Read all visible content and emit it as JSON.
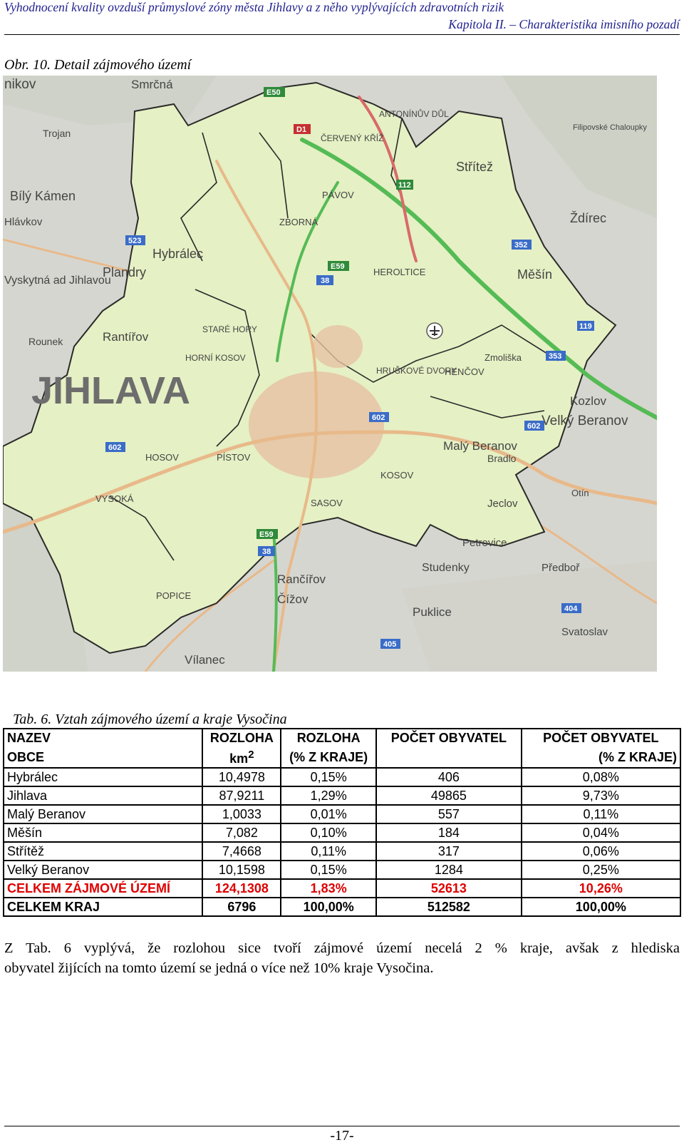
{
  "header": {
    "title": "Vyhodnocení kvality ovzduší průmyslové zóny města Jihlavy a z něho vyplývajících zdravotních rizik",
    "chapter": "Kapitola II. – Charakteristika imisního pozadí"
  },
  "figure": {
    "caption": "Obr. 10. Detail zájmového území",
    "map_labels": {
      "jihlava_big": "JIHLAVA",
      "hybralec": "Hybrálec",
      "bily_kamen": "Bílý Kámen",
      "plandry": "Plandry",
      "vyskytna": "Vyskytná ad Jihlavou",
      "rantirov": "Rantířov",
      "rounek": "Rounek",
      "stare_hory": "STARÉ HORY",
      "horni_kosov": "HORNÍ KOSOV",
      "hosov": "HOSOV",
      "pistov": "PÍSTOV",
      "vysoka": "VYSOKÁ",
      "popice": "POPICE",
      "sasov": "SASOV",
      "kosov": "KOSOV",
      "ranchirov": "Rančířov",
      "cizov": "Čížov",
      "vilanec": "Vílanec",
      "puklice": "Puklice",
      "studenky": "Studenky",
      "petrovice": "Petrovice",
      "predbor": "Předboř",
      "svatoslav": "Svatoslav",
      "jeclov": "Jeclov",
      "maly_beranov": "Malý Beranov",
      "bradlo": "Bradlo",
      "velky_beranov": "Velký Beranov",
      "kozlov": "Kozlov",
      "hencov": "HENČOV",
      "zmoliska": "Zmoliška",
      "hruskove_dvory": "HRUŠKOVÉ DVORY",
      "herltice": "HEROLTICE",
      "mesin": "Měšín",
      "zdirec": "Ždírec",
      "stritez": "Střítež",
      "antoninuv_dul": "ANTONÍNŮV DŮL",
      "cerveny_kriz": "ČERVENÝ KŘÍŽ",
      "pavov": "PÁVOV",
      "zborna": "ZBORNÁ",
      "smrcna": "Smrčná",
      "nikov": "nikov",
      "hlavkov": "Hlávkov",
      "trojan": "Trojan",
      "otin": "Otín",
      "filipovske": "Filipovské Chaloupky",
      "road_e50": "E50",
      "road_e59": "E59",
      "road_e59b": "E59",
      "road_d1": "D1",
      "road_38": "38",
      "road_38b": "38",
      "road_602a": "602",
      "road_602b": "602",
      "road_602c": "602",
      "road_352": "352",
      "road_353": "353",
      "road_523": "523",
      "road_404": "404",
      "road_405": "405",
      "road_119": "119",
      "road_112": "112"
    }
  },
  "table": {
    "caption": "Tab. 6. Vztah zájmového území a kraje Vysočina",
    "header_row1": [
      "NAZEV",
      "ROZLOHA",
      "ROZLOHA",
      "POČET OBYVATEL",
      "POČET OBYVATEL"
    ],
    "header_row2": [
      "OBCE",
      "km",
      "(% Z KRAJE)",
      "",
      "(% Z KRAJE)"
    ],
    "unit_sup": "2",
    "rows": [
      [
        "Hybrálec",
        "10,4978",
        "0,15%",
        "406",
        "0,08%"
      ],
      [
        "Jihlava",
        "87,9211",
        "1,29%",
        "49865",
        "9,73%"
      ],
      [
        "Malý Beranov",
        "1,0033",
        "0,01%",
        "557",
        "0,11%"
      ],
      [
        "Měšín",
        "7,082",
        "0,10%",
        "184",
        "0,04%"
      ],
      [
        "Střítěž",
        "7,4668",
        "0,11%",
        "317",
        "0,06%"
      ],
      [
        "Velký Beranov",
        "10,1598",
        "0,15%",
        "1284",
        "0,25%"
      ]
    ],
    "total_row": [
      "CELKEM ZÁJMOVÉ ÚZEMÍ",
      "124,1308",
      "1,83%",
      "52613",
      "10,26%"
    ],
    "kraj_row": [
      "CELKEM KRAJ",
      "6796",
      "100,00%",
      "512582",
      "100,00%"
    ]
  },
  "paragraph": {
    "line1": "Z Tab. 6 vyplývá, že rozlohou sice tvoří zájmové území necelá 2 % kraje, avšak z hlediska",
    "line2": "obyvatel žijících na tomto území se jedná o více než 10% kraje Vysočina."
  },
  "footer": {
    "page_number": "-17-"
  },
  "colors": {
    "header_text": "#1f1f8f",
    "total_row": "#e00000",
    "area_fill": "#e5f0c4",
    "motorway": "#55bb55"
  }
}
